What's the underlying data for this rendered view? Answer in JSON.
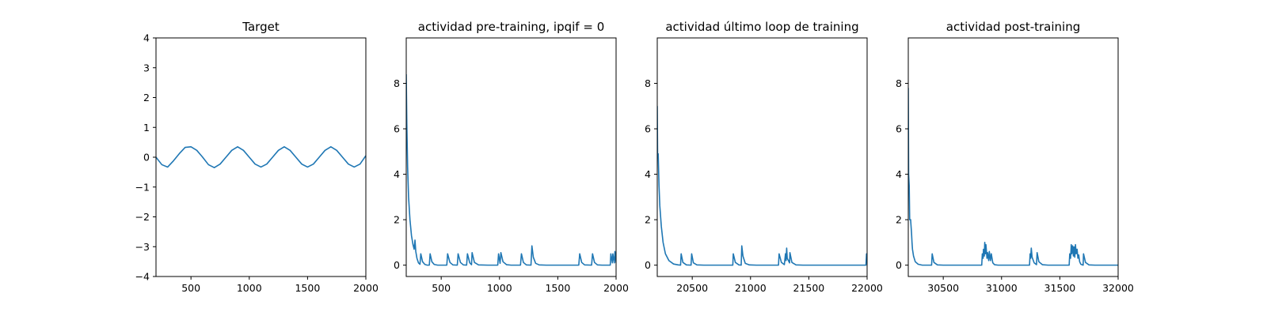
{
  "figure": {
    "background": "#ffffff",
    "line_color": "#1f77b4"
  },
  "chart_data": [
    {
      "type": "line",
      "title": "Target",
      "xlim": [
        200,
        2000
      ],
      "ylim": [
        -4,
        4
      ],
      "xticks": [
        500,
        1000,
        1500,
        2000
      ],
      "yticks": [
        -4,
        -3,
        -2,
        -1,
        0,
        1,
        2,
        3,
        4
      ],
      "series": [
        {
          "x": [
            200,
            250,
            300,
            350,
            400,
            450,
            500,
            550,
            600,
            650,
            700,
            750,
            800,
            850,
            900,
            950,
            1000,
            1050,
            1100,
            1150,
            1200,
            1250,
            1300,
            1350,
            1400,
            1450,
            1500,
            1550,
            1600,
            1650,
            1700,
            1750,
            1800,
            1850,
            1900,
            1950,
            2000
          ],
          "y": [
            0.0,
            -0.25,
            -0.33,
            -0.12,
            0.12,
            0.33,
            0.35,
            0.23,
            0.0,
            -0.25,
            -0.35,
            -0.23,
            0.0,
            0.23,
            0.35,
            0.23,
            0.0,
            -0.23,
            -0.33,
            -0.23,
            0.0,
            0.23,
            0.35,
            0.23,
            0.0,
            -0.23,
            -0.33,
            -0.23,
            0.0,
            0.23,
            0.35,
            0.23,
            0.0,
            -0.23,
            -0.33,
            -0.23,
            0.05
          ]
        }
      ]
    },
    {
      "type": "line",
      "title": "actividad pre-training, ipqif = 0",
      "xlim": [
        200,
        2000
      ],
      "ylim": [
        -0.5,
        10
      ],
      "xticks": [
        500,
        1000,
        1500,
        2000
      ],
      "yticks": [
        0,
        2,
        4,
        6,
        8
      ],
      "series": [
        {
          "x": [
            200,
            205,
            212,
            220,
            232,
            245,
            258,
            268,
            275,
            282,
            292,
            305,
            318,
            325,
            340,
            360,
            380,
            398,
            405,
            420,
            440,
            470,
            510,
            548,
            555,
            575,
            600,
            638,
            645,
            665,
            690,
            718,
            725,
            745,
            760,
            765,
            785,
            820,
            900,
            985,
            992,
            1005,
            1012,
            1030,
            1060,
            1100,
            1180,
            1188,
            1205,
            1230,
            1270,
            1278,
            1290,
            1310,
            1340,
            1400,
            1500,
            1600,
            1680,
            1688,
            1705,
            1730,
            1790,
            1798,
            1815,
            1840,
            1880,
            1930,
            1950,
            1955,
            1968,
            1972,
            1985,
            1990,
            2000
          ],
          "y": [
            8.4,
            6.2,
            4.3,
            3.0,
            2.0,
            1.3,
            0.9,
            0.7,
            1.1,
            0.6,
            0.3,
            0.1,
            0.04,
            0.5,
            0.15,
            0.03,
            0.0,
            0.0,
            0.5,
            0.15,
            0.03,
            0.0,
            0.0,
            0.0,
            0.5,
            0.12,
            0.01,
            0.0,
            0.5,
            0.12,
            0.01,
            0.0,
            0.5,
            0.1,
            0.02,
            0.55,
            0.12,
            0.01,
            0.0,
            0.0,
            0.5,
            0.08,
            0.55,
            0.15,
            0.02,
            0.0,
            0.0,
            0.5,
            0.12,
            0.01,
            0.0,
            0.85,
            0.35,
            0.08,
            0.01,
            0.0,
            0.0,
            0.0,
            0.0,
            0.5,
            0.12,
            0.01,
            0.0,
            0.5,
            0.12,
            0.01,
            0.0,
            0.0,
            0.0,
            0.5,
            0.1,
            0.5,
            0.1,
            0.6,
            0.1
          ]
        }
      ]
    },
    {
      "type": "line",
      "title": "actividad último loop de training",
      "xlim": [
        20200,
        22000
      ],
      "ylim": [
        -0.5,
        10
      ],
      "xticks": [
        20500,
        21000,
        21500,
        22000
      ],
      "yticks": [
        0,
        2,
        4,
        6,
        8
      ],
      "series": [
        {
          "x": [
            20200,
            20203,
            20208,
            20215,
            20222,
            20235,
            20250,
            20270,
            20300,
            20340,
            20380,
            20400,
            20405,
            20420,
            20450,
            20490,
            20495,
            20510,
            20540,
            20600,
            20700,
            20800,
            20848,
            20852,
            20870,
            20900,
            20920,
            20925,
            20935,
            20955,
            20990,
            21050,
            21150,
            21240,
            21245,
            21265,
            21290,
            21300,
            21305,
            21310,
            21315,
            21335,
            21338,
            21355,
            21390,
            21450,
            21550,
            21650,
            21750,
            21850,
            21950,
            21990,
            21995,
            21998,
            22000
          ],
          "y": [
            7.0,
            4.8,
            4.9,
            3.5,
            2.6,
            1.7,
            1.0,
            0.5,
            0.2,
            0.05,
            0.01,
            0.0,
            0.5,
            0.12,
            0.01,
            0.0,
            0.5,
            0.1,
            0.01,
            0.0,
            0.0,
            0.0,
            0.0,
            0.5,
            0.12,
            0.01,
            0.0,
            0.85,
            0.4,
            0.08,
            0.01,
            0.0,
            0.0,
            0.0,
            0.5,
            0.12,
            0.02,
            0.5,
            0.2,
            0.75,
            0.3,
            0.1,
            0.55,
            0.12,
            0.01,
            0.0,
            0.0,
            0.0,
            0.0,
            0.0,
            0.0,
            0.0,
            0.5,
            0.1,
            0.5
          ]
        }
      ]
    },
    {
      "type": "line",
      "title": "actividad post-training",
      "xlim": [
        30200,
        32000
      ],
      "ylim": [
        -0.5,
        10
      ],
      "xticks": [
        30500,
        31000,
        31500,
        32000
      ],
      "yticks": [
        0,
        2,
        4,
        6,
        8
      ],
      "series": [
        {
          "x": [
            30200,
            30203,
            30208,
            30212,
            30220,
            30228,
            30232,
            30236,
            30245,
            30260,
            30285,
            30320,
            30360,
            30400,
            30405,
            30420,
            30450,
            30500,
            30600,
            30700,
            30800,
            30830,
            30835,
            30842,
            30845,
            30852,
            30856,
            30862,
            30866,
            30875,
            30880,
            30890,
            30895,
            30905,
            30912,
            30925,
            30940,
            30970,
            31000,
            31100,
            31200,
            31240,
            31245,
            31250,
            31255,
            31262,
            31280,
            31300,
            31305,
            31320,
            31350,
            31400,
            31500,
            31580,
            31585,
            31592,
            31598,
            31602,
            31610,
            31616,
            31622,
            31628,
            31634,
            31640,
            31648,
            31655,
            31662,
            31670,
            31680,
            31700,
            31703,
            31720,
            31750,
            31800,
            31900,
            32000
          ],
          "y": [
            7.8,
            4.0,
            3.5,
            2.0,
            2.0,
            1.4,
            1.0,
            0.7,
            0.4,
            0.15,
            0.04,
            0.0,
            0.0,
            0.0,
            0.5,
            0.12,
            0.01,
            0.0,
            0.0,
            0.0,
            0.0,
            0.0,
            0.5,
            0.3,
            0.7,
            0.4,
            1.0,
            0.5,
            0.9,
            0.3,
            0.55,
            0.2,
            0.6,
            0.2,
            0.5,
            0.1,
            0.02,
            0.0,
            0.0,
            0.0,
            0.0,
            0.0,
            0.5,
            0.3,
            0.75,
            0.35,
            0.1,
            0.02,
            0.55,
            0.15,
            0.02,
            0.0,
            0.0,
            0.0,
            0.5,
            0.3,
            0.9,
            0.5,
            0.85,
            0.4,
            0.8,
            0.35,
            0.9,
            0.5,
            0.7,
            0.3,
            0.45,
            0.15,
            0.04,
            0.0,
            0.5,
            0.12,
            0.01,
            0.0,
            0.0,
            0.0
          ]
        }
      ]
    }
  ]
}
